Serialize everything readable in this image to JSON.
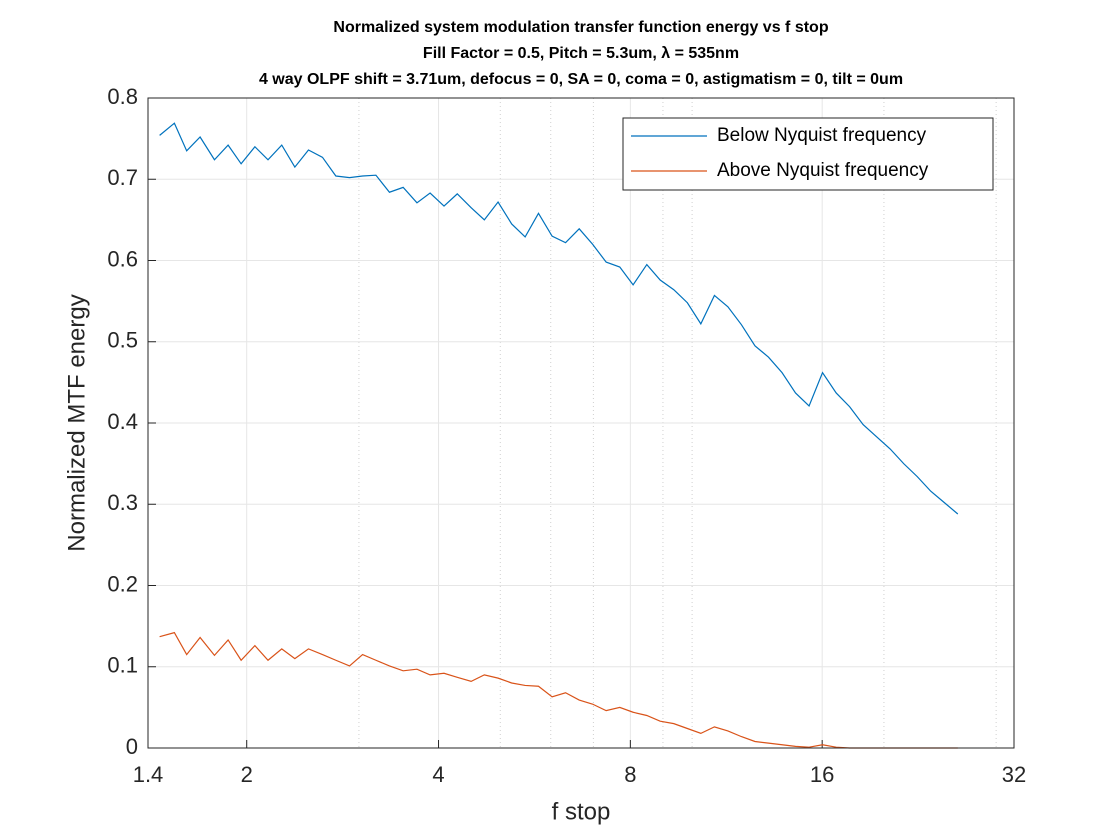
{
  "chart_data": {
    "type": "line",
    "title": [
      "Normalized system modulation transfer function energy vs f stop",
      "Fill Factor = 0.5, Pitch = 5.3um, λ = 535nm",
      "4 way OLPF shift = 3.71um, defocus = 0, SA = 0, coma = 0, astigmatism = 0, tilt = 0um"
    ],
    "xlabel": "f stop",
    "ylabel": "Normalized MTF energy",
    "x": [
      1.46,
      1.54,
      1.61,
      1.69,
      1.78,
      1.87,
      1.96,
      2.06,
      2.16,
      2.27,
      2.38,
      2.5,
      2.63,
      2.76,
      2.9,
      3.04,
      3.19,
      3.35,
      3.52,
      3.7,
      3.88,
      4.08,
      4.28,
      4.5,
      4.72,
      4.96,
      5.21,
      5.47,
      5.74,
      6.03,
      6.33,
      6.65,
      6.98,
      7.33,
      7.7,
      8.08,
      8.49,
      8.91,
      9.36,
      9.83,
      10.32,
      10.84,
      11.38,
      11.95,
      12.55,
      13.18,
      13.84,
      14.53,
      15.26,
      16.02,
      16.83,
      17.67,
      18.55,
      19.48,
      20.46,
      21.48,
      22.56,
      23.69,
      24.88,
      26.12
    ],
    "series": [
      {
        "name": "Below Nyquist frequency",
        "color": "#0072bd",
        "values": [
          0.754,
          0.769,
          0.735,
          0.752,
          0.724,
          0.742,
          0.719,
          0.74,
          0.724,
          0.742,
          0.715,
          0.736,
          0.727,
          0.704,
          0.702,
          0.704,
          0.705,
          0.684,
          0.69,
          0.671,
          0.683,
          0.667,
          0.682,
          0.665,
          0.65,
          0.672,
          0.645,
          0.629,
          0.658,
          0.63,
          0.622,
          0.639,
          0.62,
          0.598,
          0.592,
          0.57,
          0.595,
          0.576,
          0.564,
          0.548,
          0.522,
          0.557,
          0.543,
          0.521,
          0.495,
          0.481,
          0.462,
          0.437,
          0.421,
          0.462,
          0.437,
          0.42,
          0.398,
          0.383,
          0.368,
          0.35,
          0.334,
          0.316,
          0.302,
          0.288
        ]
      },
      {
        "name": "Above Nyquist frequency",
        "color": "#d95319",
        "values": [
          0.137,
          0.142,
          0.115,
          0.136,
          0.114,
          0.133,
          0.108,
          0.126,
          0.108,
          0.122,
          0.11,
          0.122,
          0.115,
          0.108,
          0.101,
          0.115,
          0.108,
          0.101,
          0.095,
          0.097,
          0.09,
          0.092,
          0.087,
          0.082,
          0.09,
          0.086,
          0.08,
          0.077,
          0.076,
          0.063,
          0.068,
          0.059,
          0.054,
          0.046,
          0.05,
          0.044,
          0.04,
          0.033,
          0.03,
          0.024,
          0.018,
          0.026,
          0.021,
          0.014,
          0.008,
          0.006,
          0.004,
          0.002,
          0.001,
          0.004,
          0.001,
          0,
          0,
          0,
          0,
          0,
          0,
          0,
          0,
          0
        ]
      }
    ],
    "xscale": "log",
    "xlim": [
      1.4,
      32
    ],
    "xticks": [
      1.4,
      2,
      4,
      8,
      16,
      32
    ],
    "minor_xticks": [
      3,
      5,
      6,
      7,
      9,
      10,
      20,
      30
    ],
    "ylim": [
      0,
      0.8
    ],
    "yticks": [
      0,
      0.1,
      0.2,
      0.3,
      0.4,
      0.5,
      0.6,
      0.7,
      0.8
    ],
    "grid": true,
    "legend": "upper right"
  }
}
